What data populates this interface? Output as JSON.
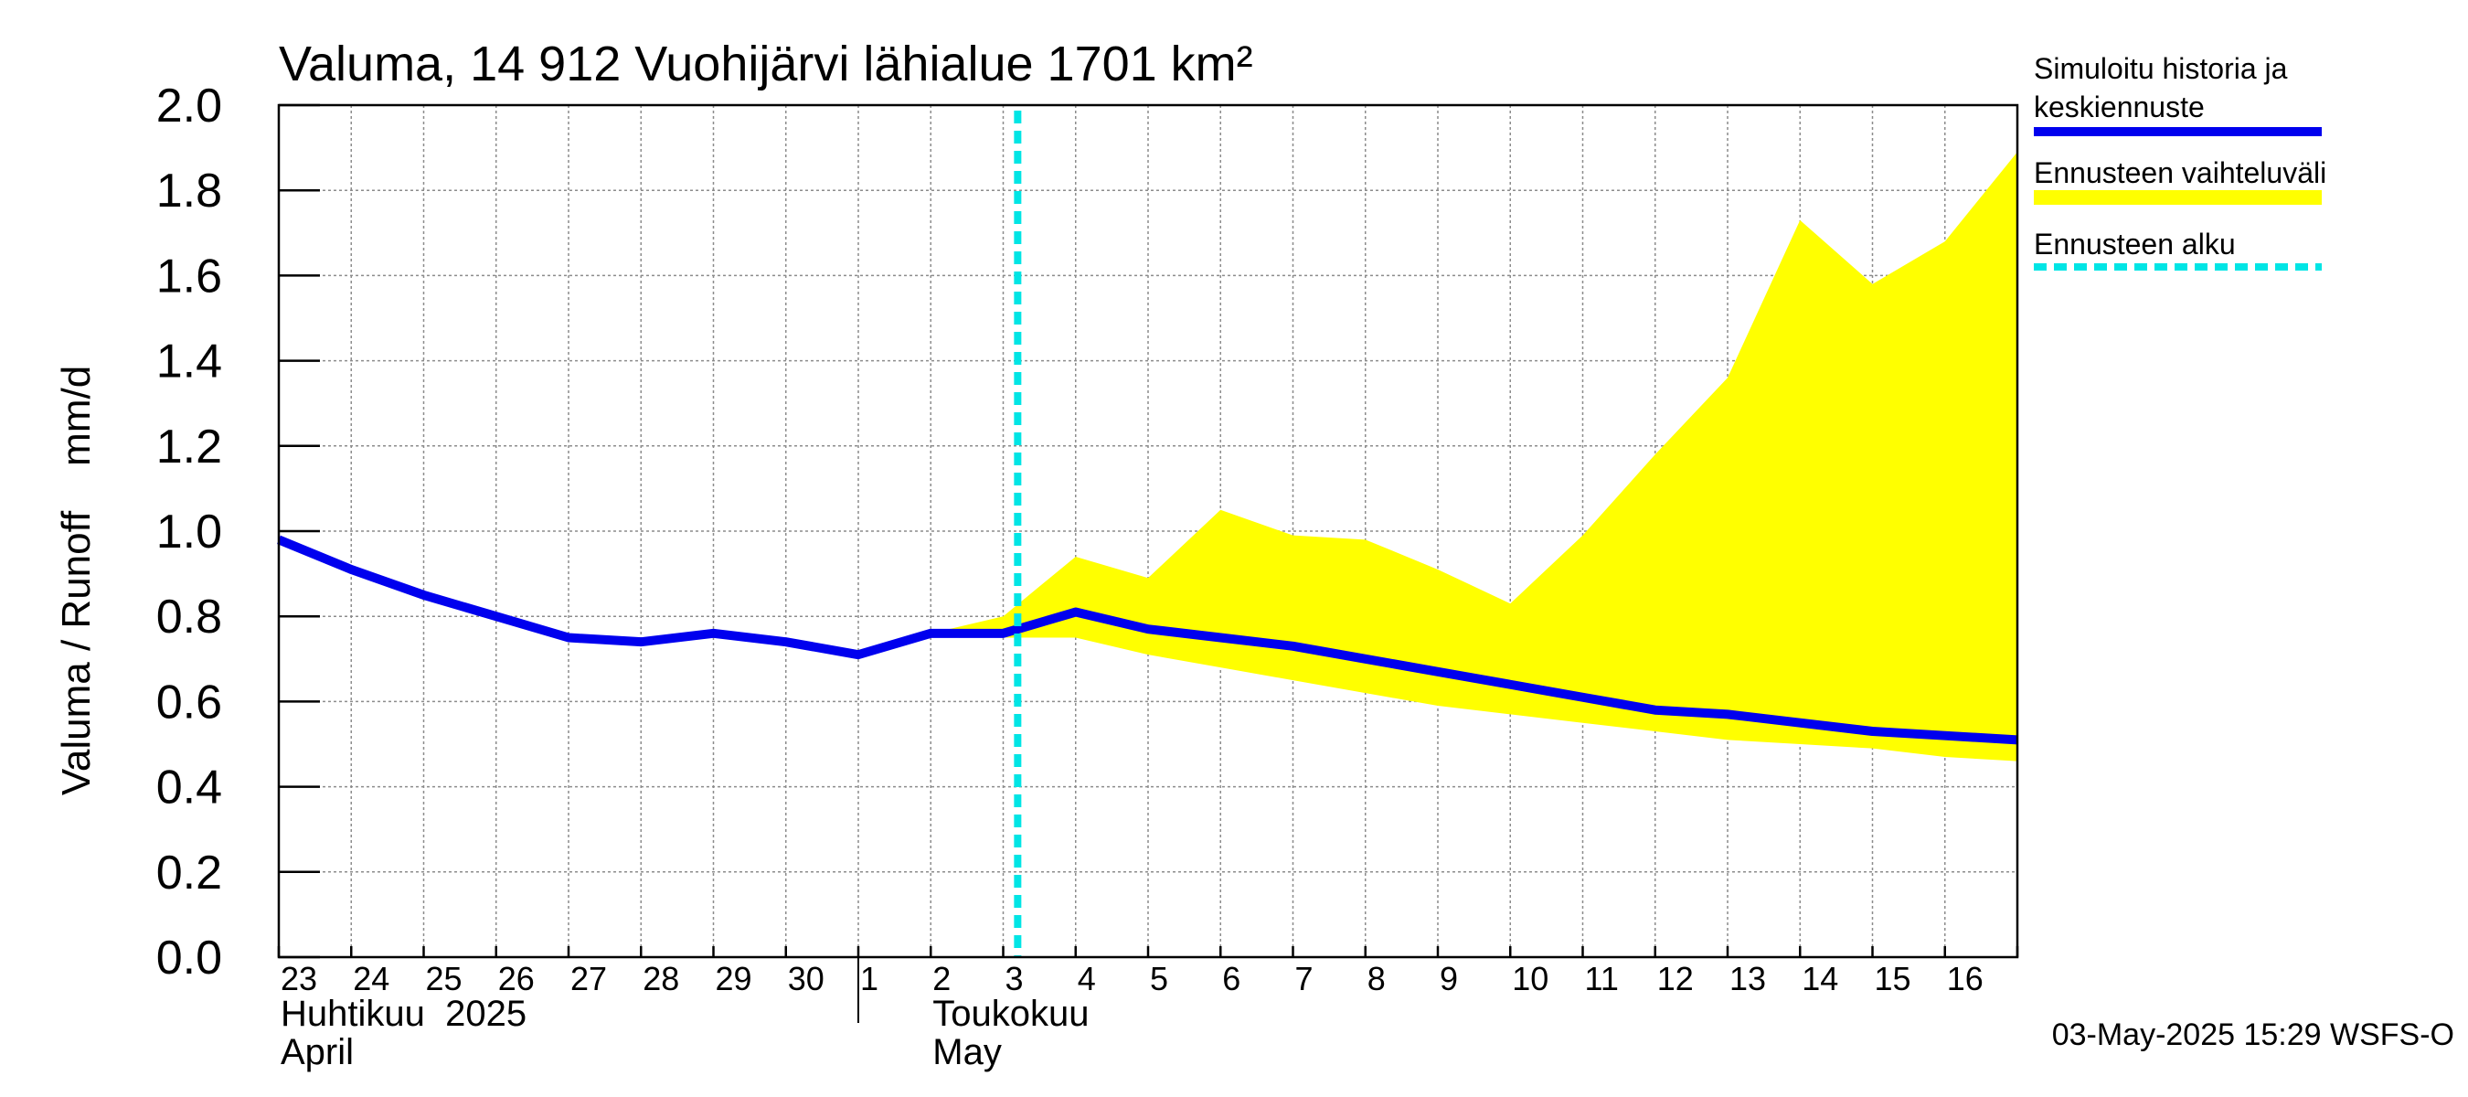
{
  "chart_data": {
    "type": "line",
    "title": "Valuma, 14 912 Vuohijärvi lähialue 1701 km²",
    "ylabel": "Valuma / Runoff    mm/d",
    "ylim": [
      0,
      2.0
    ],
    "yticks": [
      "0.0",
      "0.2",
      "0.4",
      "0.6",
      "0.8",
      "1.0",
      "1.2",
      "1.4",
      "1.6",
      "1.8",
      "2.0"
    ],
    "xlim": [
      0,
      24
    ],
    "day_labels": [
      "23",
      "24",
      "25",
      "26",
      "27",
      "28",
      "29",
      "30",
      "1",
      "2",
      "3",
      "4",
      "5",
      "6",
      "7",
      "8",
      "9",
      "10",
      "11",
      "12",
      "13",
      "14",
      "15",
      "16"
    ],
    "month_labels": [
      {
        "line1": "Huhtikuu  2025",
        "line2": "April",
        "start_day": 0
      },
      {
        "line1": "Toukokuu",
        "line2": "May",
        "start_day": 9
      }
    ],
    "month_boundary_day": 8,
    "forecast_start_day": 10.2,
    "grid": true,
    "series": [
      {
        "name": "Simuloitu historia ja keskiennuste",
        "color": "#0000ee",
        "points": [
          [
            0,
            0.98
          ],
          [
            1,
            0.91
          ],
          [
            2,
            0.85
          ],
          [
            3,
            0.8
          ],
          [
            4,
            0.75
          ],
          [
            5,
            0.74
          ],
          [
            6,
            0.76
          ],
          [
            7,
            0.74
          ],
          [
            8,
            0.71
          ],
          [
            9,
            0.76
          ],
          [
            10,
            0.76
          ],
          [
            11,
            0.81
          ],
          [
            12,
            0.77
          ],
          [
            13,
            0.75
          ],
          [
            14,
            0.73
          ],
          [
            15,
            0.7
          ],
          [
            16,
            0.67
          ],
          [
            17,
            0.64
          ],
          [
            18,
            0.61
          ],
          [
            19,
            0.58
          ],
          [
            20,
            0.57
          ],
          [
            21,
            0.55
          ],
          [
            22,
            0.53
          ],
          [
            23,
            0.52
          ],
          [
            24,
            0.51
          ]
        ]
      }
    ],
    "band": {
      "name": "Ennusteen vaihteluväli",
      "color": "#ffff00",
      "upper": [
        [
          9,
          0.76
        ],
        [
          10,
          0.8
        ],
        [
          11,
          0.94
        ],
        [
          12,
          0.89
        ],
        [
          13,
          1.05
        ],
        [
          14,
          0.99
        ],
        [
          15,
          0.98
        ],
        [
          16,
          0.91
        ],
        [
          17,
          0.83
        ],
        [
          18,
          0.99
        ],
        [
          19,
          1.18
        ],
        [
          20,
          1.36
        ],
        [
          21,
          1.73
        ],
        [
          22,
          1.58
        ],
        [
          23,
          1.68
        ],
        [
          24,
          1.89
        ]
      ],
      "lower": [
        [
          9,
          0.76
        ],
        [
          10,
          0.75
        ],
        [
          11,
          0.75
        ],
        [
          12,
          0.71
        ],
        [
          13,
          0.68
        ],
        [
          14,
          0.65
        ],
        [
          15,
          0.62
        ],
        [
          16,
          0.59
        ],
        [
          17,
          0.57
        ],
        [
          18,
          0.55
        ],
        [
          19,
          0.53
        ],
        [
          20,
          0.51
        ],
        [
          21,
          0.5
        ],
        [
          22,
          0.49
        ],
        [
          23,
          0.47
        ],
        [
          24,
          0.46
        ]
      ]
    },
    "legend": [
      {
        "line1": "Simuloitu historia ja",
        "line2": "keskiennuste",
        "style": "line",
        "color": "#0000ee"
      },
      {
        "line1": "Ennusteen vaihteluväli",
        "line2": "",
        "style": "band",
        "color": "#ffff00"
      },
      {
        "line1": "Ennusteen alku",
        "line2": "",
        "style": "dashed",
        "color": "#00e5e5"
      }
    ],
    "legend_position": "right",
    "timestamp": "03-May-2025 15:29 WSFS-O"
  }
}
